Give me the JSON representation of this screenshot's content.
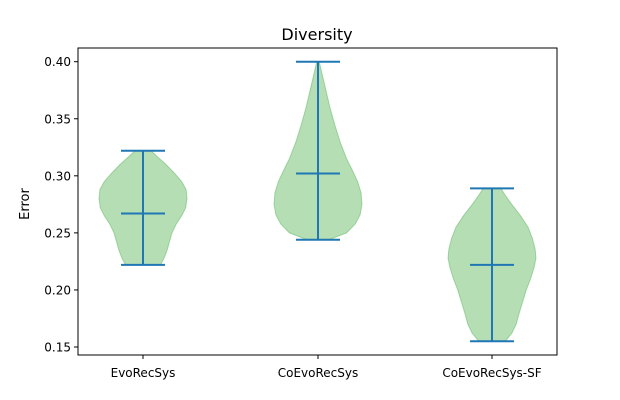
{
  "chart_data": {
    "type": "violin",
    "title": "Diversity",
    "xlabel": "",
    "ylabel": "Error",
    "categories": [
      "EvoRecSys",
      "CoEvoRecSys",
      "CoEvoRecSys-SF"
    ],
    "ylim": [
      0.143,
      0.412
    ],
    "yticks": [
      0.15,
      0.2,
      0.25,
      0.3,
      0.35,
      0.4
    ],
    "ytick_labels": [
      "0.15",
      "0.20",
      "0.25",
      "0.30",
      "0.35",
      "0.40"
    ],
    "grid": false,
    "legend": "none",
    "colors": {
      "body": "#2ca02c",
      "lines": "#1f77b4"
    },
    "violins": [
      {
        "name": "EvoRecSys",
        "min": 0.222,
        "mean": 0.267,
        "max": 0.322,
        "profile": [
          [
            0.222,
            0.4
          ],
          [
            0.228,
            0.48
          ],
          [
            0.235,
            0.55
          ],
          [
            0.242,
            0.6
          ],
          [
            0.25,
            0.66
          ],
          [
            0.258,
            0.76
          ],
          [
            0.265,
            0.88
          ],
          [
            0.272,
            0.97
          ],
          [
            0.28,
            1.0
          ],
          [
            0.288,
            0.98
          ],
          [
            0.295,
            0.88
          ],
          [
            0.302,
            0.72
          ],
          [
            0.31,
            0.52
          ],
          [
            0.316,
            0.35
          ],
          [
            0.322,
            0.18
          ]
        ]
      },
      {
        "name": "CoEvoRecSys",
        "min": 0.244,
        "mean": 0.302,
        "max": 0.4,
        "profile": [
          [
            0.244,
            0.25
          ],
          [
            0.25,
            0.65
          ],
          [
            0.258,
            0.85
          ],
          [
            0.266,
            0.96
          ],
          [
            0.275,
            1.0
          ],
          [
            0.285,
            0.98
          ],
          [
            0.295,
            0.9
          ],
          [
            0.305,
            0.78
          ],
          [
            0.315,
            0.65
          ],
          [
            0.33,
            0.5
          ],
          [
            0.345,
            0.38
          ],
          [
            0.36,
            0.27
          ],
          [
            0.375,
            0.18
          ],
          [
            0.388,
            0.1
          ],
          [
            0.4,
            0.03
          ]
        ]
      },
      {
        "name": "CoEvoRecSys-SF",
        "min": 0.155,
        "mean": 0.222,
        "max": 0.289,
        "profile": [
          [
            0.155,
            0.3
          ],
          [
            0.162,
            0.45
          ],
          [
            0.17,
            0.55
          ],
          [
            0.18,
            0.62
          ],
          [
            0.19,
            0.7
          ],
          [
            0.2,
            0.78
          ],
          [
            0.21,
            0.88
          ],
          [
            0.22,
            0.96
          ],
          [
            0.228,
            1.0
          ],
          [
            0.236,
            0.98
          ],
          [
            0.245,
            0.92
          ],
          [
            0.255,
            0.82
          ],
          [
            0.265,
            0.65
          ],
          [
            0.275,
            0.45
          ],
          [
            0.283,
            0.3
          ],
          [
            0.289,
            0.2
          ]
        ]
      }
    ]
  }
}
